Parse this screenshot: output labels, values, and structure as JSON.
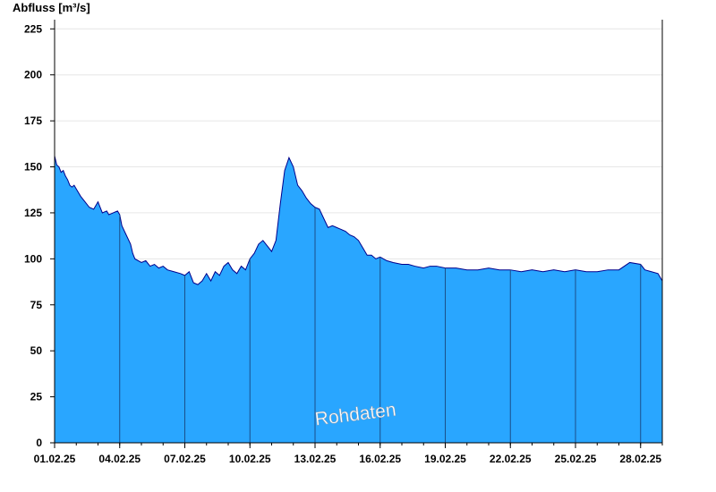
{
  "chart_data": {
    "type": "area",
    "ylabel": "Abfluss [m³/s]",
    "xlabel": "",
    "watermark": "Rohdaten",
    "ylim": [
      0,
      230
    ],
    "yticks": [
      0,
      25,
      50,
      75,
      100,
      125,
      150,
      175,
      200,
      225
    ],
    "xticks": [
      "01.02.25",
      "04.02.25",
      "07.02.25",
      "10.02.25",
      "13.02.25",
      "16.02.25",
      "19.02.25",
      "22.02.25",
      "25.02.25",
      "28.02.25"
    ],
    "xlim_days": [
      1,
      29
    ],
    "grid": true,
    "fill_color": "#29a6ff",
    "line_color": "#00008b",
    "series": [
      {
        "x": [
          1,
          1.1,
          1.2,
          1.3,
          1.4,
          1.5,
          1.6,
          1.7,
          1.8,
          1.9,
          2,
          2.2,
          2.4,
          2.6,
          2.8,
          3,
          3.2,
          3.4,
          3.5,
          3.7,
          3.9,
          4,
          4.1,
          4.3,
          4.5,
          4.6,
          4.7,
          5,
          5.2,
          5.4,
          5.6,
          5.8,
          6,
          6.2,
          6.5,
          6.8,
          7,
          7.2,
          7.4,
          7.6,
          7.8,
          8,
          8.2,
          8.4,
          8.6,
          8.8,
          9,
          9.2,
          9.4,
          9.6,
          9.8,
          10,
          10.2,
          10.4,
          10.6,
          10.8,
          11,
          11.2,
          11.4,
          11.6,
          11.8,
          12,
          12.2,
          12.4,
          12.6,
          12.8,
          13,
          13.2,
          13.4,
          13.6,
          13.8,
          14,
          14.2,
          14.4,
          14.6,
          14.8,
          15,
          15.2,
          15.4,
          15.6,
          15.8,
          16,
          16.3,
          16.6,
          17,
          17.3,
          17.6,
          18,
          18.3,
          18.6,
          19,
          19.5,
          20,
          20.5,
          21,
          21.5,
          22,
          22.5,
          23,
          23.5,
          24,
          24.5,
          25,
          25.5,
          26,
          26.5,
          27,
          27.5,
          28,
          28.2,
          28.5,
          28.8,
          29
        ],
        "y": [
          156,
          151,
          150,
          147,
          148,
          145,
          143,
          140,
          139,
          140,
          138,
          134,
          131,
          128,
          127,
          131,
          125,
          126,
          124,
          125,
          126,
          124,
          118,
          113,
          108,
          103,
          100,
          98,
          99,
          96,
          97,
          95,
          96,
          94,
          93,
          92,
          91,
          93,
          87,
          86,
          88,
          92,
          88,
          93,
          91,
          96,
          98,
          94,
          92,
          96,
          94,
          100,
          103,
          108,
          110,
          107,
          104,
          110,
          130,
          148,
          155,
          150,
          140,
          137,
          133,
          130,
          128,
          127,
          122,
          117,
          118,
          117,
          116,
          115,
          113,
          112,
          110,
          106,
          102,
          102,
          100,
          101,
          99,
          98,
          97,
          97,
          96,
          95,
          96,
          96,
          95,
          95,
          94,
          94,
          95,
          94,
          94,
          93,
          94,
          93,
          94,
          93,
          94,
          93,
          93,
          94,
          94,
          98,
          97,
          94,
          93,
          92,
          88
        ]
      }
    ]
  }
}
